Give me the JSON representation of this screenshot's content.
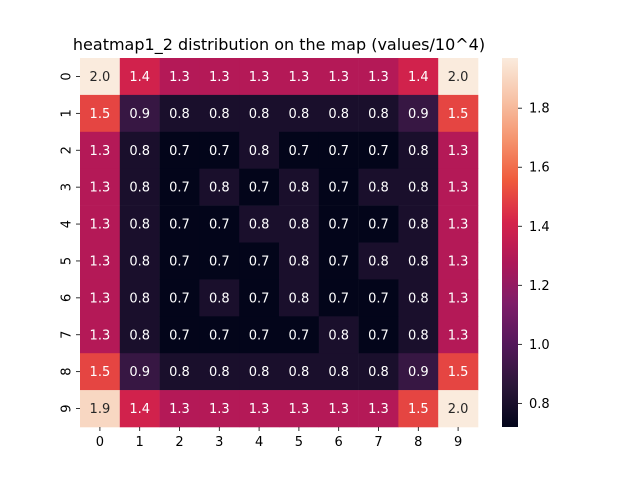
{
  "chart_data": {
    "type": "heatmap",
    "title": "heatmap1_2 distribution on the map (values/10^4)",
    "xlabel": "",
    "ylabel": "",
    "x_categories": [
      "0",
      "1",
      "2",
      "3",
      "4",
      "5",
      "6",
      "7",
      "8",
      "9"
    ],
    "y_categories": [
      "0",
      "1",
      "2",
      "3",
      "4",
      "5",
      "6",
      "7",
      "8",
      "9"
    ],
    "values": [
      [
        2.0,
        1.4,
        1.3,
        1.3,
        1.3,
        1.3,
        1.3,
        1.3,
        1.4,
        2.0
      ],
      [
        1.5,
        0.9,
        0.8,
        0.8,
        0.8,
        0.8,
        0.8,
        0.8,
        0.9,
        1.5
      ],
      [
        1.3,
        0.8,
        0.7,
        0.7,
        0.8,
        0.7,
        0.7,
        0.7,
        0.8,
        1.3
      ],
      [
        1.3,
        0.8,
        0.7,
        0.8,
        0.7,
        0.8,
        0.7,
        0.8,
        0.8,
        1.3
      ],
      [
        1.3,
        0.8,
        0.7,
        0.7,
        0.8,
        0.8,
        0.7,
        0.7,
        0.8,
        1.3
      ],
      [
        1.3,
        0.8,
        0.7,
        0.7,
        0.7,
        0.8,
        0.7,
        0.8,
        0.8,
        1.3
      ],
      [
        1.3,
        0.8,
        0.7,
        0.8,
        0.7,
        0.8,
        0.7,
        0.7,
        0.8,
        1.3
      ],
      [
        1.3,
        0.8,
        0.7,
        0.7,
        0.7,
        0.7,
        0.8,
        0.7,
        0.8,
        1.3
      ],
      [
        1.5,
        0.9,
        0.8,
        0.8,
        0.8,
        0.8,
        0.8,
        0.8,
        0.9,
        1.5
      ],
      [
        1.9,
        1.4,
        1.3,
        1.3,
        1.3,
        1.3,
        1.3,
        1.3,
        1.5,
        2.0
      ]
    ],
    "colorbar": {
      "vmin": 0.72,
      "vmax": 1.97,
      "ticks": [
        0.8,
        1.0,
        1.2,
        1.4,
        1.6,
        1.8
      ],
      "tick_labels": [
        "0.8",
        "1.0",
        "1.2",
        "1.4",
        "1.6",
        "1.8"
      ]
    },
    "colormap": "rocket",
    "colormap_stops": [
      "#03051a",
      "#2b1739",
      "#53185a",
      "#7e1d69",
      "#ad1759",
      "#d5234b",
      "#ef5a3c",
      "#f5936d",
      "#f7c3a7",
      "#faebdd"
    ],
    "annotation_light_color": "#ffffff",
    "annotation_dark_color": "#262626"
  }
}
